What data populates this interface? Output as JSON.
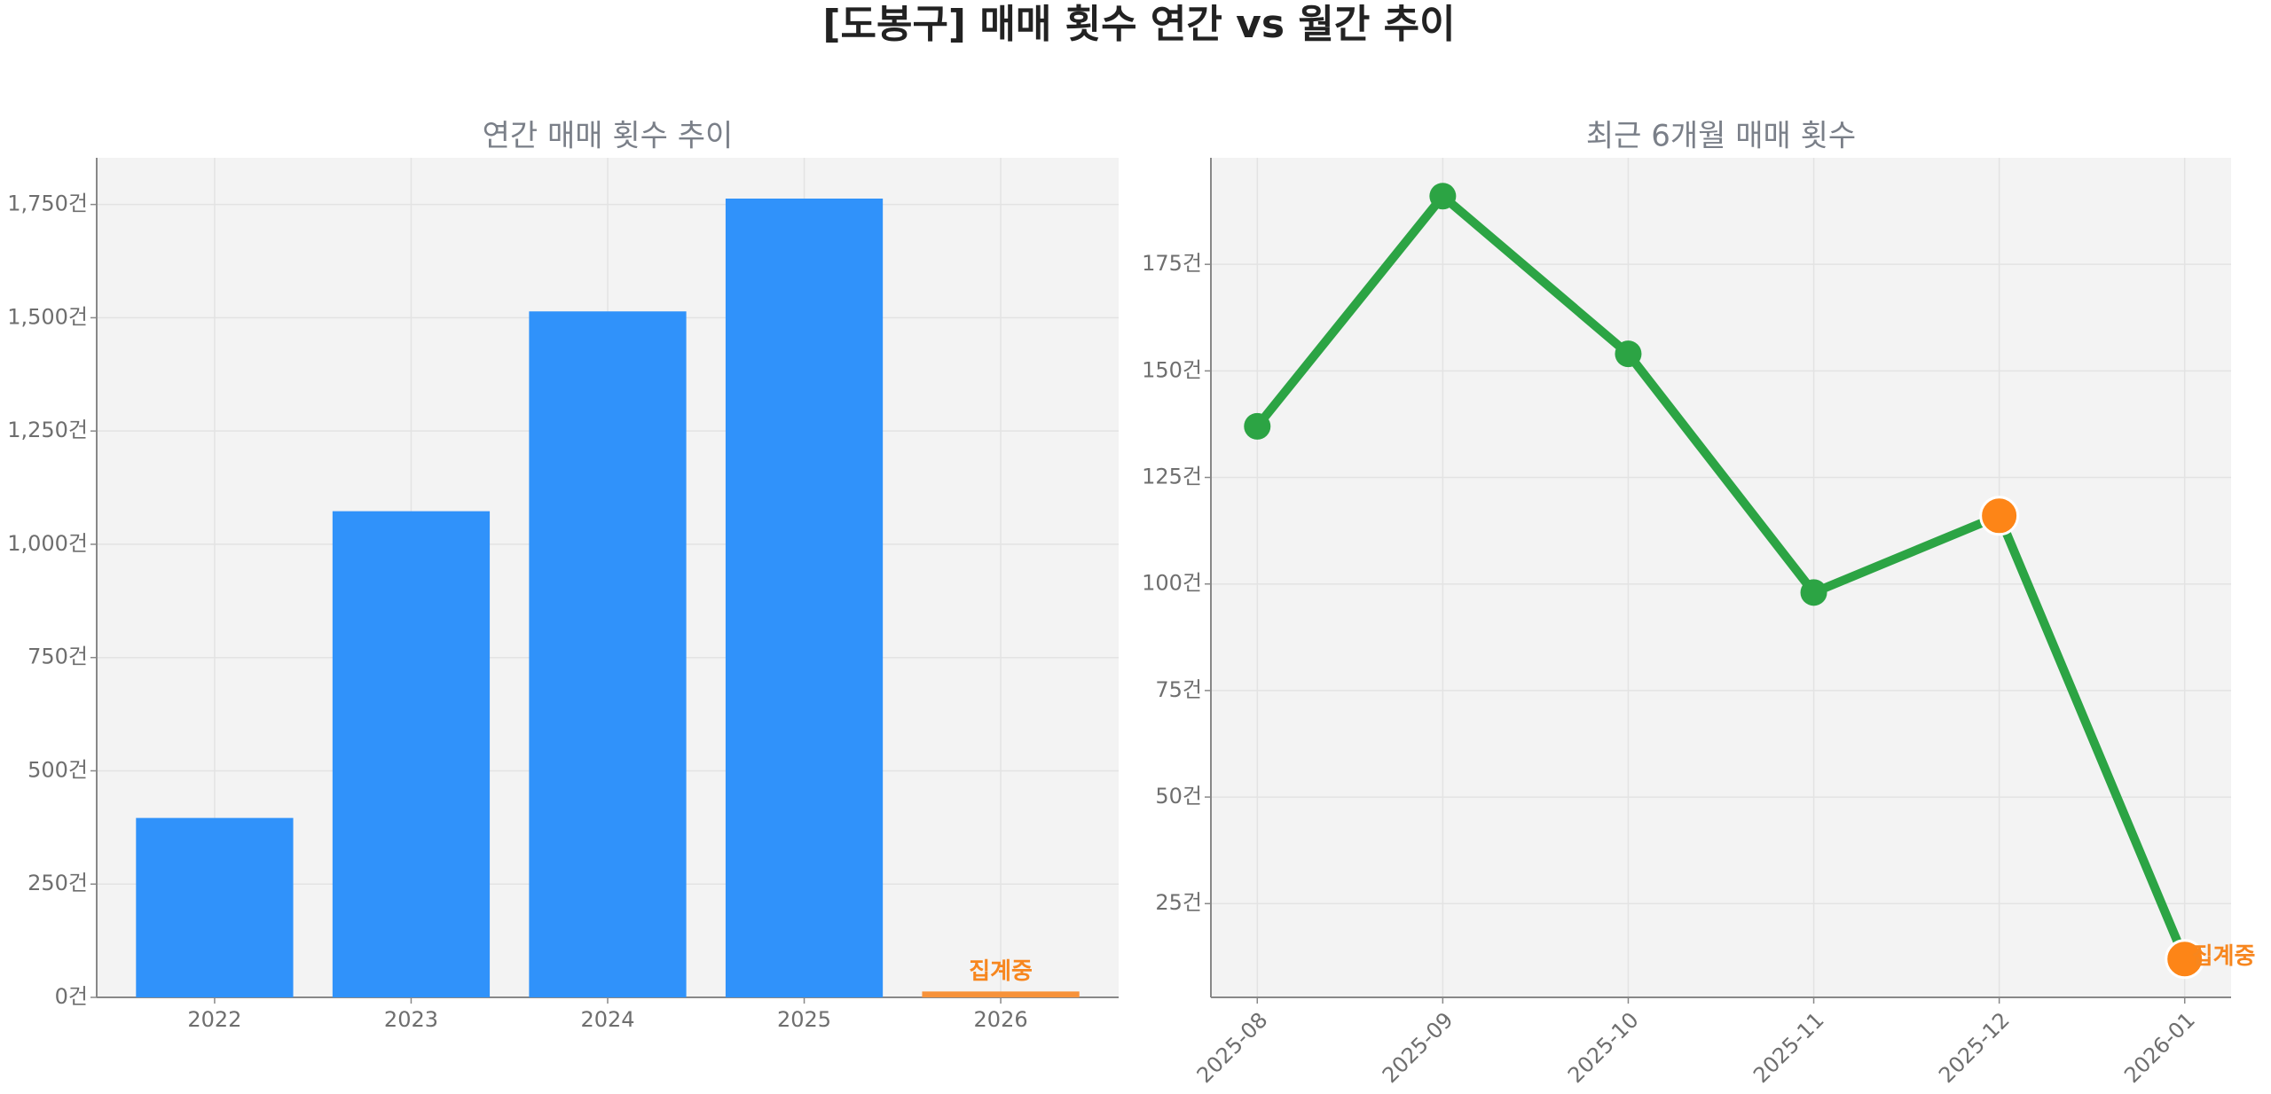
{
  "title": "[도봉구] 매매 횟수 연간 vs 월간 추이",
  "chart_data": [
    {
      "type": "bar",
      "title": "연간 매매 횟수 추이",
      "categories": [
        "2022",
        "2023",
        "2024",
        "2025",
        "2026"
      ],
      "values": [
        396,
        1073,
        1514,
        1763,
        13
      ],
      "colors": [
        "#3092fa",
        "#3092fa",
        "#3092fa",
        "#3092fa",
        "#f7923a"
      ],
      "ylim": [
        0,
        1853
      ],
      "yticks": [
        {
          "value": 0,
          "label": "0건"
        },
        {
          "value": 250,
          "label": "250건"
        },
        {
          "value": 500,
          "label": "500건"
        },
        {
          "value": 750,
          "label": "750건"
        },
        {
          "value": 1000,
          "label": "1,000건"
        },
        {
          "value": 1250,
          "label": "1,250건"
        },
        {
          "value": 1500,
          "label": "1,500건"
        },
        {
          "value": 1750,
          "label": "1,750건"
        }
      ],
      "grid": true,
      "annotations": [
        {
          "text": "집계중",
          "category": "2026",
          "color": "#f7861e"
        }
      ]
    },
    {
      "type": "line",
      "title": "최근 6개월 매매 횟수",
      "categories": [
        "2025-08",
        "2025-09",
        "2025-10",
        "2025-11",
        "2025-12",
        "2026-01"
      ],
      "values": [
        137,
        191,
        154,
        98,
        116,
        12
      ],
      "color": "#2ca444",
      "marker_colors": [
        "#2ca444",
        "#2ca444",
        "#2ca444",
        "#2ca444",
        "#fd8517",
        "#fd8517"
      ],
      "ylim": [
        3,
        200
      ],
      "yticks": [
        {
          "value": 25,
          "label": "25건"
        },
        {
          "value": 50,
          "label": "50건"
        },
        {
          "value": 75,
          "label": "75건"
        },
        {
          "value": 100,
          "label": "100건"
        },
        {
          "value": 125,
          "label": "125건"
        },
        {
          "value": 150,
          "label": "150건"
        },
        {
          "value": 175,
          "label": "175건"
        }
      ],
      "grid": true,
      "annotations": [
        {
          "text": "집계중",
          "category": "2026-01",
          "color": "#f7861e"
        }
      ]
    }
  ]
}
